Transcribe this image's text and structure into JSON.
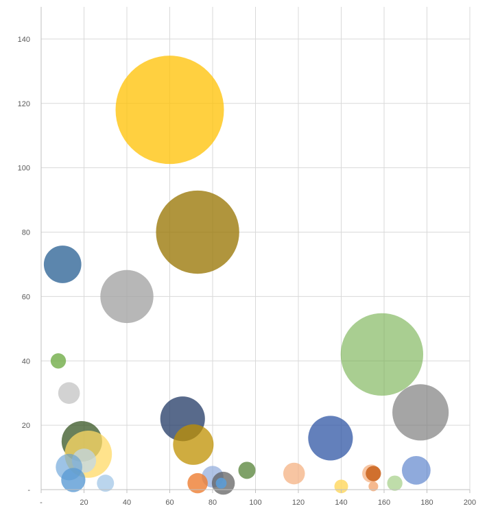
{
  "chart_data": {
    "type": "bubble",
    "title": "",
    "xlabel": "",
    "ylabel": "",
    "xlim": [
      0,
      200
    ],
    "ylim": [
      0,
      150
    ],
    "x_ticks": [
      0,
      20,
      40,
      60,
      80,
      100,
      120,
      140,
      160,
      180,
      200
    ],
    "x_tick_labels": [
      "-",
      "20",
      "40",
      "60",
      "80",
      "100",
      "120",
      "140",
      "160",
      "180",
      "200"
    ],
    "y_ticks": [
      0,
      20,
      40,
      60,
      80,
      100,
      120,
      140
    ],
    "y_tick_labels": [
      "-",
      "20",
      "40",
      "60",
      "80",
      "100",
      "120",
      "140"
    ],
    "grid": true,
    "legend": "none",
    "points": [
      {
        "x": 60,
        "y": 118,
        "size": 100,
        "color": "#FFC000",
        "opacity": 0.75
      },
      {
        "x": 73,
        "y": 80,
        "size": 59,
        "color": "#9C7A0C",
        "opacity": 0.8
      },
      {
        "x": 159,
        "y": 42,
        "size": 58,
        "color": "#70AD47",
        "opacity": 0.6
      },
      {
        "x": 40,
        "y": 60,
        "size": 24,
        "color": "#A5A5A5",
        "opacity": 0.8
      },
      {
        "x": 177,
        "y": 24,
        "size": 27,
        "color": "#7F7F7F",
        "opacity": 0.7
      },
      {
        "x": 10,
        "y": 70,
        "size": 12,
        "color": "#255E91",
        "opacity": 0.75
      },
      {
        "x": 66,
        "y": 22,
        "size": 17,
        "color": "#203864",
        "opacity": 0.75
      },
      {
        "x": 135,
        "y": 16,
        "size": 17,
        "color": "#2F55A4",
        "opacity": 0.75
      },
      {
        "x": 19,
        "y": 15,
        "size": 14,
        "color": "#375623",
        "opacity": 0.75
      },
      {
        "x": 71,
        "y": 14,
        "size": 14,
        "color": "#BF9000",
        "opacity": 0.75
      },
      {
        "x": 22,
        "y": 11,
        "size": 19,
        "color": "#FFD966",
        "opacity": 0.75
      },
      {
        "x": 20,
        "y": 9,
        "size": 5,
        "color": "#BDD7EE",
        "opacity": 0.7
      },
      {
        "x": 13,
        "y": 7,
        "size": 6,
        "color": "#5B9BD5",
        "opacity": 0.6
      },
      {
        "x": 15,
        "y": 3,
        "size": 5,
        "color": "#5B9BD5",
        "opacity": 0.8
      },
      {
        "x": 30,
        "y": 2,
        "size": 2.5,
        "color": "#9DC3E6",
        "opacity": 0.7
      },
      {
        "x": 13,
        "y": 30,
        "size": 4,
        "color": "#BFBFBF",
        "opacity": 0.7
      },
      {
        "x": 8,
        "y": 40,
        "size": 2,
        "color": "#70AD47",
        "opacity": 0.8
      },
      {
        "x": 175,
        "y": 6,
        "size": 7,
        "color": "#4472C4",
        "opacity": 0.6
      },
      {
        "x": 96,
        "y": 6,
        "size": 2.5,
        "color": "#548235",
        "opacity": 0.75
      },
      {
        "x": 118,
        "y": 5,
        "size": 4,
        "color": "#F4B183",
        "opacity": 0.75
      },
      {
        "x": 154,
        "y": 5,
        "size": 2.8,
        "color": "#F4B183",
        "opacity": 0.75
      },
      {
        "x": 155,
        "y": 5,
        "size": 2,
        "color": "#C55A11",
        "opacity": 0.8
      },
      {
        "x": 165,
        "y": 2,
        "size": 2,
        "color": "#A9D18E",
        "opacity": 0.75
      },
      {
        "x": 80,
        "y": 4,
        "size": 4,
        "color": "#8FAADC",
        "opacity": 0.7
      },
      {
        "x": 73,
        "y": 2,
        "size": 3.5,
        "color": "#ED7D31",
        "opacity": 0.8
      },
      {
        "x": 85,
        "y": 2,
        "size": 4.5,
        "color": "#595959",
        "opacity": 0.7
      },
      {
        "x": 84,
        "y": 2,
        "size": 1,
        "color": "#5B9BD5",
        "opacity": 0.9
      },
      {
        "x": 140,
        "y": 1,
        "size": 1.6,
        "color": "#FFD966",
        "opacity": 0.85
      },
      {
        "x": 155,
        "y": 1,
        "size": 0.8,
        "color": "#F4B183",
        "opacity": 0.9
      }
    ]
  }
}
